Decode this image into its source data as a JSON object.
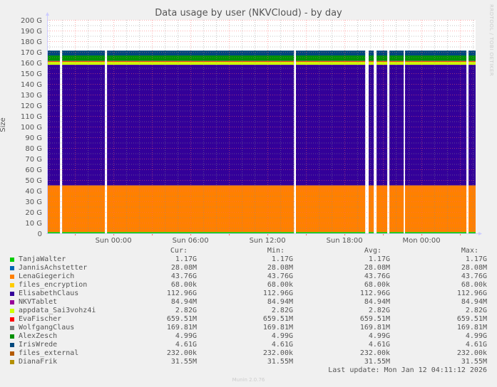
{
  "chart_data": {
    "type": "area",
    "stacked": true,
    "title": "Data usage by user (NKVCloud) - by day",
    "ylabel": "Size",
    "ylim": [
      0,
      200
    ],
    "yticks": [
      "0",
      "10 G",
      "20 G",
      "30 G",
      "40 G",
      "50 G",
      "60 G",
      "70 G",
      "80 G",
      "90 G",
      "100 G",
      "110 G",
      "120 G",
      "130 G",
      "140 G",
      "150 G",
      "160 G",
      "170 G",
      "180 G",
      "190 G",
      "200 G"
    ],
    "xrange": [
      "Sat 18:53",
      "Mon 04:13"
    ],
    "xticks": [
      "Sun 00:00",
      "Sun 06:00",
      "Sun 12:00",
      "Sun 18:00",
      "Mon 00:00"
    ],
    "grid": true,
    "gaps": [
      [
        "Sat 19:50",
        "Sat 20:00"
      ],
      [
        "Sat 23:20",
        "Sat 23:30"
      ],
      [
        "Sun 14:04",
        "Sun 14:13"
      ],
      [
        "Sun 19:37",
        "Sun 19:53"
      ],
      [
        "Sun 20:17",
        "Sun 20:30"
      ],
      [
        "Sun 21:20",
        "Sun 21:30"
      ],
      [
        "Sun 22:37",
        "Sun 22:43"
      ],
      [
        "Mon 03:30",
        "Mon 03:40"
      ]
    ],
    "series": [
      {
        "name": "TanjaWalter",
        "color": "#00cc00",
        "value_g": 1.17,
        "cur": "1.17G",
        "min": "1.17G",
        "avg": "1.17G",
        "max": "1.17G"
      },
      {
        "name": "JannisAchstetter",
        "color": "#0066b3",
        "value_g": 0.028,
        "cur": "28.08M",
        "min": "28.08M",
        "avg": "28.08M",
        "max": "28.08M"
      },
      {
        "name": "LenaGiegerich",
        "color": "#ff8000",
        "value_g": 43.76,
        "cur": "43.76G",
        "min": "43.76G",
        "avg": "43.76G",
        "max": "43.76G"
      },
      {
        "name": "files_encryption",
        "color": "#ffcc00",
        "value_g": 7e-05,
        "cur": "68.00k",
        "min": "68.00k",
        "avg": "68.00k",
        "max": "68.00k"
      },
      {
        "name": "ElisabethClaus",
        "color": "#330099",
        "value_g": 112.96,
        "cur": "112.96G",
        "min": "112.96G",
        "avg": "112.96G",
        "max": "112.96G"
      },
      {
        "name": "NKVTablet",
        "color": "#990099",
        "value_g": 0.085,
        "cur": "84.94M",
        "min": "84.94M",
        "avg": "84.94M",
        "max": "84.94M"
      },
      {
        "name": "appdata_Sai3vohz4i",
        "color": "#ccff00",
        "value_g": 2.82,
        "cur": "2.82G",
        "min": "2.82G",
        "avg": "2.82G",
        "max": "2.82G"
      },
      {
        "name": "EvaFischer",
        "color": "#ff0000",
        "value_g": 0.66,
        "cur": "659.51M",
        "min": "659.51M",
        "avg": "659.51M",
        "max": "659.51M"
      },
      {
        "name": "WolfgangClaus",
        "color": "#808080",
        "value_g": 0.17,
        "cur": "169.81M",
        "min": "169.81M",
        "avg": "169.81M",
        "max": "169.81M"
      },
      {
        "name": "AlexZesch",
        "color": "#008f00",
        "value_g": 4.99,
        "cur": "4.99G",
        "min": "4.99G",
        "avg": "4.99G",
        "max": "4.99G"
      },
      {
        "name": "IrisWrede",
        "color": "#00487d",
        "value_g": 4.61,
        "cur": "4.61G",
        "min": "4.61G",
        "avg": "4.61G",
        "max": "4.61G"
      },
      {
        "name": "files_external",
        "color": "#b35a00",
        "value_g": 0.00023,
        "cur": "232.00k",
        "min": "232.00k",
        "avg": "232.00k",
        "max": "232.00k"
      },
      {
        "name": "DianaFrik",
        "color": "#b38f00",
        "value_g": 0.032,
        "cur": "31.55M",
        "min": "31.55M",
        "avg": "31.55M",
        "max": "31.55M"
      }
    ]
  },
  "legend": {
    "cur": "Cur:",
    "min": "Min:",
    "avg": "Avg:",
    "max": "Max:"
  },
  "side_text": "RRDTOOL / TOBI OETIKER",
  "last_update": "Last update: Mon Jan 12 04:11:12 2026",
  "munin_version": "Munin 2.0.76"
}
